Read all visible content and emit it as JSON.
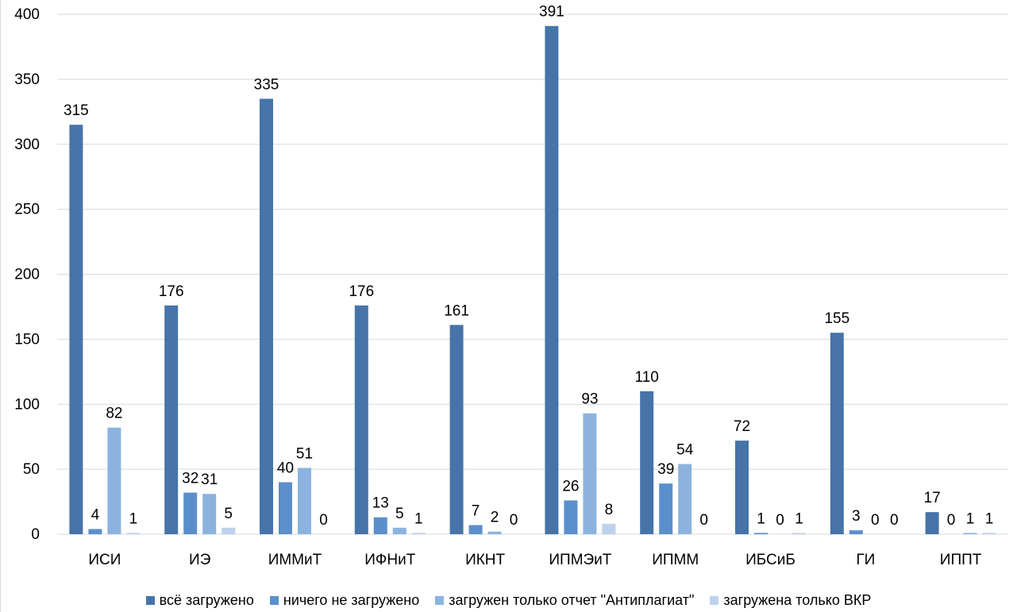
{
  "chart_data": {
    "type": "bar",
    "categories": [
      "ИСИ",
      "ИЭ",
      "ИММиТ",
      "ИФНиТ",
      "ИКНТ",
      "ИПМЭиТ",
      "ИПММ",
      "ИБСиБ",
      "ГИ",
      "ИППТ"
    ],
    "series": [
      {
        "name": "всё загружено",
        "color": "#4674a8",
        "values": [
          315,
          176,
          335,
          176,
          161,
          391,
          110,
          72,
          155,
          17
        ]
      },
      {
        "name": "ничего не загружено",
        "color": "#5b8fcb",
        "values": [
          4,
          32,
          40,
          13,
          7,
          26,
          39,
          1,
          3,
          0
        ]
      },
      {
        "name": "загружен только отчет \"Антиплагиат\"",
        "color": "#8cb3de",
        "values": [
          82,
          31,
          51,
          5,
          2,
          93,
          54,
          0,
          0,
          1
        ]
      },
      {
        "name": "загружена только ВКР",
        "color": "#bcd2ec",
        "values": [
          1,
          5,
          0,
          1,
          0,
          8,
          0,
          1,
          0,
          1
        ]
      }
    ],
    "ylim": [
      0,
      400
    ],
    "yticks": [
      0,
      50,
      100,
      150,
      200,
      250,
      300,
      350,
      400
    ],
    "grid": true,
    "legend_position": "bottom",
    "data_labels": true
  }
}
